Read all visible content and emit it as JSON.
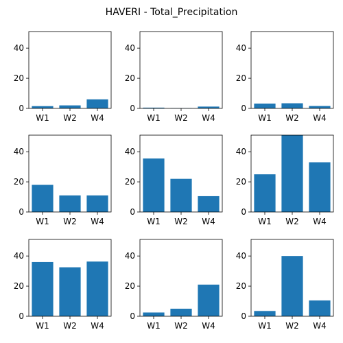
{
  "chart_data": {
    "type": "bar",
    "title": "HAVERI - Total_Precipitation",
    "layout": {
      "rows": 3,
      "cols": 3
    },
    "bar_color": "#1f77b4",
    "categories": [
      "W1",
      "W2",
      "W4"
    ],
    "ylim": [
      0,
      51
    ],
    "yticks": [
      0,
      20,
      40
    ],
    "panels": [
      {
        "values": [
          1.5,
          2.0,
          6.0
        ]
      },
      {
        "values": [
          0.5,
          0.2,
          1.2
        ]
      },
      {
        "values": [
          3.2,
          3.4,
          1.6
        ]
      },
      {
        "values": [
          18.0,
          11.0,
          11.0
        ]
      },
      {
        "values": [
          35.5,
          22.0,
          10.5
        ]
      },
      {
        "values": [
          25.0,
          51.0,
          33.0
        ]
      },
      {
        "values": [
          36.0,
          32.5,
          36.3
        ]
      },
      {
        "values": [
          2.5,
          5.0,
          21.0
        ]
      },
      {
        "values": [
          3.5,
          40.0,
          10.5
        ]
      }
    ]
  }
}
